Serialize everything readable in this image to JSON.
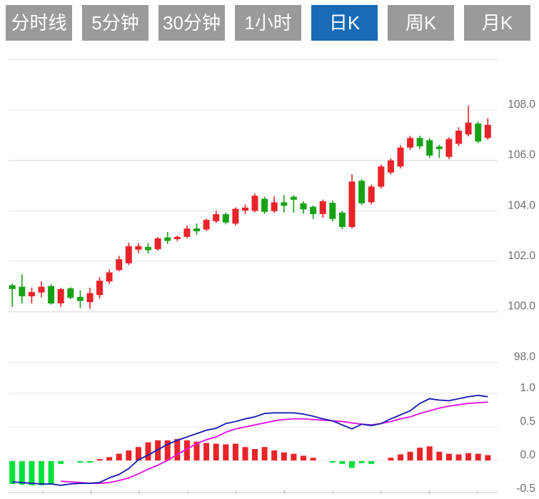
{
  "toolbar": {
    "buttons": [
      {
        "label": "分时线",
        "active": false
      },
      {
        "label": "5分钟",
        "active": false
      },
      {
        "label": "30分钟",
        "active": false
      },
      {
        "label": "1小时",
        "active": false
      },
      {
        "label": "日K",
        "active": true
      },
      {
        "label": "周K",
        "active": false
      },
      {
        "label": "月K",
        "active": false
      }
    ]
  },
  "colors": {
    "up": "#e8242a",
    "down": "#16a216",
    "hist_down": "#00e13c",
    "dif_line": "#1e1eb4",
    "dea_line": "#e816e8",
    "button_bg": "#9a9a9a",
    "button_active_bg": "#176ab5",
    "button_text": "#ffffff",
    "grid": "#e4e4e4",
    "axis_line": "#c6c6c6",
    "axis_text": "#6d6d6d"
  },
  "chart_data": [
    {
      "type": "candlestick",
      "title": "Daily K-line (日K)",
      "legend_position": "none",
      "grid": true,
      "ylim": [
        97.9,
        110.0
      ],
      "y_ticks": [
        {
          "value": 110.0,
          "label": ""
        },
        {
          "value": 108.0,
          "label": "108.0"
        },
        {
          "value": 106.0,
          "label": "106.0"
        },
        {
          "value": 104.0,
          "label": "104.0"
        },
        {
          "value": 102.0,
          "label": "102.0"
        },
        {
          "value": 100.0,
          "label": "100.0"
        },
        {
          "value": 98.0,
          "label": "98.0"
        }
      ],
      "candles_ohlc": [
        [
          101.05,
          101.12,
          100.19,
          100.9
        ],
        [
          100.99,
          101.48,
          100.33,
          100.61
        ],
        [
          100.61,
          100.95,
          100.33,
          100.78
        ],
        [
          100.76,
          101.21,
          100.57,
          100.99
        ],
        [
          101.02,
          101.08,
          100.28,
          100.33
        ],
        [
          100.33,
          100.95,
          100.19,
          100.9
        ],
        [
          100.93,
          100.97,
          100.5,
          100.55
        ],
        [
          100.59,
          100.85,
          100.14,
          100.43
        ],
        [
          100.38,
          100.95,
          100.11,
          100.74
        ],
        [
          100.66,
          101.37,
          100.52,
          101.23
        ],
        [
          101.2,
          101.68,
          101.1,
          101.56
        ],
        [
          101.65,
          102.22,
          101.6,
          102.08
        ],
        [
          101.92,
          102.74,
          101.85,
          102.6
        ],
        [
          102.46,
          102.72,
          102.32,
          102.6
        ],
        [
          102.57,
          102.72,
          102.3,
          102.44
        ],
        [
          102.48,
          102.96,
          102.42,
          102.91
        ],
        [
          102.95,
          103.16,
          102.69,
          102.81
        ],
        [
          102.88,
          103.02,
          102.8,
          102.97
        ],
        [
          102.97,
          103.42,
          102.92,
          103.3
        ],
        [
          103.3,
          103.5,
          103.05,
          103.19
        ],
        [
          103.26,
          103.7,
          103.2,
          103.64
        ],
        [
          103.59,
          104.01,
          103.52,
          103.87
        ],
        [
          103.87,
          103.94,
          103.46,
          103.54
        ],
        [
          103.49,
          104.14,
          103.42,
          104.08
        ],
        [
          104.01,
          104.26,
          103.88,
          104.13
        ],
        [
          104.0,
          104.68,
          103.94,
          104.6
        ],
        [
          104.48,
          104.56,
          103.88,
          103.96
        ],
        [
          103.99,
          104.58,
          103.92,
          104.34
        ],
        [
          104.34,
          104.63,
          103.93,
          104.2
        ],
        [
          104.56,
          104.62,
          103.93,
          104.44
        ],
        [
          104.3,
          104.38,
          103.89,
          104.06
        ],
        [
          104.16,
          104.22,
          103.68,
          103.87
        ],
        [
          103.87,
          104.45,
          103.73,
          104.38
        ],
        [
          104.32,
          104.4,
          103.58,
          103.68
        ],
        [
          103.93,
          104.0,
          103.28,
          103.36
        ],
        [
          103.36,
          105.45,
          103.3,
          105.16
        ],
        [
          105.19,
          105.26,
          104.22,
          104.3
        ],
        [
          104.34,
          105.04,
          104.26,
          104.96
        ],
        [
          104.96,
          105.84,
          104.88,
          105.76
        ],
        [
          105.52,
          106.08,
          105.44,
          106.0
        ],
        [
          105.76,
          106.6,
          105.68,
          106.51
        ],
        [
          106.51,
          106.98,
          106.42,
          106.89
        ],
        [
          106.89,
          106.98,
          106.45,
          106.56
        ],
        [
          106.8,
          106.88,
          106.1,
          106.19
        ],
        [
          106.55,
          106.62,
          106.1,
          106.45
        ],
        [
          106.14,
          106.92,
          106.05,
          106.85
        ],
        [
          106.66,
          107.32,
          106.56,
          107.18
        ],
        [
          107.03,
          108.17,
          106.95,
          107.5
        ],
        [
          107.46,
          107.54,
          106.68,
          106.75
        ],
        [
          106.89,
          107.67,
          106.82,
          107.41
        ]
      ]
    },
    {
      "type": "macd",
      "title": "MACD indicator panel",
      "grid": true,
      "ylim": [
        -0.48,
        1.05
      ],
      "y_ticks": [
        {
          "value": 1.0,
          "label": "1.0"
        },
        {
          "value": 0.5,
          "label": "0.5"
        },
        {
          "value": 0.0,
          "label": "0.0"
        },
        {
          "value": -0.5,
          "label": "-0.5"
        }
      ],
      "x_tick_count": 10,
      "histogram": [
        -0.34,
        -0.35,
        -0.36,
        -0.36,
        -0.35,
        -0.04,
        0,
        -0.02,
        -0.02,
        0.02,
        0.05,
        0.1,
        0.15,
        0.2,
        0.27,
        0.3,
        0.3,
        0.32,
        0.3,
        0.28,
        0.26,
        0.25,
        0.24,
        0.25,
        0.2,
        0.17,
        0.2,
        0.15,
        0.12,
        0.1,
        0.07,
        0.04,
        0,
        -0.02,
        -0.04,
        -0.1,
        -0.03,
        -0.04,
        0,
        0.04,
        0.09,
        0.13,
        0.19,
        0.21,
        0.13,
        0.1,
        0.09,
        0.11,
        0.1,
        0.08
      ],
      "series": [
        {
          "name": "DIF",
          "color_key": "dif_line",
          "values": [
            -0.32,
            -0.33,
            -0.34,
            -0.35,
            -0.35,
            -0.37,
            -0.35,
            -0.34,
            -0.34,
            -0.33,
            -0.26,
            -0.21,
            -0.12,
            0.01,
            0.08,
            0.16,
            0.24,
            0.3,
            0.35,
            0.4,
            0.45,
            0.48,
            0.55,
            0.58,
            0.62,
            0.65,
            0.7,
            0.71,
            0.71,
            0.71,
            0.69,
            0.66,
            0.62,
            0.59,
            0.53,
            0.47,
            0.54,
            0.52,
            0.55,
            0.62,
            0.68,
            0.74,
            0.85,
            0.92,
            0.9,
            0.89,
            0.92,
            0.95,
            0.97,
            0.95
          ]
        },
        {
          "name": "DEA",
          "color_key": "dea_line",
          "values": [
            null,
            null,
            null,
            null,
            null,
            -0.31,
            -0.32,
            -0.33,
            -0.34,
            -0.34,
            -0.33,
            -0.3,
            -0.26,
            -0.2,
            -0.13,
            -0.07,
            0.0,
            0.09,
            0.17,
            0.25,
            0.31,
            0.35,
            0.42,
            0.47,
            0.5,
            0.53,
            0.56,
            0.59,
            0.61,
            0.62,
            0.62,
            0.61,
            0.6,
            0.59,
            0.58,
            0.56,
            0.54,
            0.53,
            0.55,
            0.58,
            0.62,
            0.65,
            0.7,
            0.74,
            0.78,
            0.81,
            0.83,
            0.85,
            0.86,
            0.87
          ]
        }
      ]
    }
  ]
}
